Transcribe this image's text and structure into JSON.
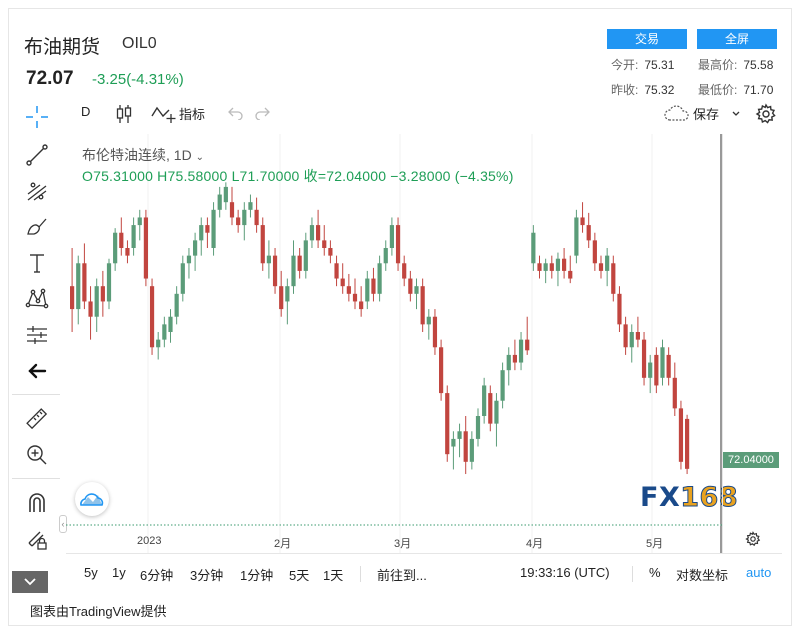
{
  "header": {
    "title": "布油期货",
    "symbol": "OIL0",
    "price": "72.07",
    "change": "-3.25(-4.31%)",
    "trade_label": "交易",
    "fullscreen_label": "全屏",
    "stats": {
      "open_label": "今开:",
      "open": "75.31",
      "high_label": "最高价:",
      "high": "75.58",
      "prev_label": "昨收:",
      "prev": "75.32",
      "low_label": "最低价:",
      "low": "71.70"
    }
  },
  "toolbar": {
    "interval": "D",
    "indicators_label": "指标",
    "save_label": "保存"
  },
  "legend": {
    "name": "布伦特油连续, 1D",
    "ohlc": "O75.31000  H75.58000  L71.70000  收=72.04000  −3.28000 (−4.35%)"
  },
  "price_tag": "72.04000",
  "logo_text": {
    "fx": "FX",
    "num": "168"
  },
  "colors": {
    "up": "#5b9c79",
    "down": "#c1453f",
    "accent": "#2196f3"
  },
  "icons": [
    "crosshair-icon",
    "trend-line-icon",
    "fib-icon",
    "brush-icon",
    "text-icon",
    "pattern-icon",
    "forecast-icon",
    "back-arrow-icon",
    "ruler-icon",
    "zoom-in-icon",
    "magnet-icon",
    "lock-pencil-icon",
    "eye-icon"
  ],
  "bottom": {
    "ranges": [
      "5y",
      "1y",
      "6分钟",
      "3分钟",
      "1分钟",
      "5天",
      "1天"
    ],
    "goto_label": "前往到...",
    "clock": "19:33:16 (UTC)",
    "percent": "%",
    "log_label": "对数坐标",
    "auto_label": "auto"
  },
  "footer": "图表由TradingView提供",
  "chart_data": {
    "type": "candlestick",
    "x_labels": [
      "2023",
      "2月",
      "3月",
      "4月",
      "5月"
    ],
    "last_price": 72.04,
    "candles": [
      [
        84.0,
        86.5,
        81.0,
        82.5
      ],
      [
        82.5,
        86.0,
        81.5,
        85.5
      ],
      [
        85.5,
        86.8,
        82.5,
        83.0
      ],
      [
        83.0,
        84.0,
        80.5,
        82.0
      ],
      [
        82.0,
        84.5,
        81.0,
        84.0
      ],
      [
        84.0,
        85.0,
        82.0,
        83.0
      ],
      [
        83.0,
        85.8,
        82.5,
        85.5
      ],
      [
        85.5,
        87.8,
        85.0,
        87.5
      ],
      [
        87.5,
        88.5,
        86.0,
        86.5
      ],
      [
        86.5,
        87.0,
        85.5,
        86.0
      ],
      [
        86.5,
        88.5,
        86.0,
        88.0
      ],
      [
        88.0,
        89.0,
        87.0,
        88.5
      ],
      [
        88.5,
        89.0,
        84.0,
        84.5
      ],
      [
        84.0,
        84.5,
        79.5,
        80.0
      ],
      [
        80.0,
        81.0,
        79.2,
        80.5
      ],
      [
        80.5,
        82.0,
        80.0,
        81.5
      ],
      [
        81.0,
        82.5,
        80.3,
        82.0
      ],
      [
        82.0,
        84.0,
        81.5,
        83.5
      ],
      [
        83.5,
        86.0,
        83.0,
        85.5
      ],
      [
        85.5,
        86.5,
        84.5,
        86.0
      ],
      [
        86.0,
        87.5,
        85.0,
        87.0
      ],
      [
        87.0,
        88.5,
        86.0,
        88.0
      ],
      [
        88.0,
        88.5,
        86.5,
        87.5
      ],
      [
        86.5,
        89.5,
        86.0,
        89.0
      ],
      [
        89.0,
        90.5,
        88.5,
        90.0
      ],
      [
        89.5,
        90.8,
        89.0,
        90.5
      ],
      [
        89.5,
        90.5,
        88.0,
        88.5
      ],
      [
        88.5,
        89.0,
        87.5,
        88.0
      ],
      [
        88.0,
        89.5,
        87.0,
        89.0
      ],
      [
        89.0,
        90.0,
        88.5,
        89.5
      ],
      [
        89.0,
        89.8,
        87.5,
        88.0
      ],
      [
        88.0,
        88.5,
        85.0,
        85.5
      ],
      [
        85.5,
        87.0,
        84.5,
        86.0
      ],
      [
        86.0,
        86.5,
        83.5,
        84.0
      ],
      [
        84.0,
        85.0,
        82.0,
        82.5
      ],
      [
        83.0,
        84.5,
        81.5,
        84.0
      ],
      [
        84.0,
        87.0,
        83.5,
        86.0
      ],
      [
        86.0,
        86.5,
        84.5,
        85.0
      ],
      [
        85.0,
        87.5,
        84.5,
        87.0
      ],
      [
        87.0,
        88.5,
        86.5,
        88.0
      ],
      [
        88.0,
        89.0,
        86.5,
        87.0
      ],
      [
        87.0,
        88.0,
        86.0,
        86.5
      ],
      [
        86.5,
        87.0,
        85.5,
        86.0
      ],
      [
        85.5,
        86.0,
        84.0,
        84.5
      ],
      [
        84.5,
        85.5,
        83.5,
        84.0
      ],
      [
        84.0,
        84.8,
        83.0,
        83.5
      ],
      [
        83.5,
        84.5,
        82.5,
        83.0
      ],
      [
        83.0,
        84.0,
        82.0,
        82.5
      ],
      [
        83.0,
        85.0,
        82.5,
        84.5
      ],
      [
        84.5,
        85.2,
        83.0,
        83.5
      ],
      [
        83.5,
        86.0,
        83.0,
        85.5
      ],
      [
        85.5,
        87.0,
        85.0,
        86.5
      ],
      [
        86.5,
        88.5,
        86.0,
        88.0
      ],
      [
        88.0,
        88.5,
        85.0,
        85.5
      ],
      [
        85.5,
        86.0,
        84.0,
        84.5
      ],
      [
        84.5,
        85.0,
        83.0,
        83.5
      ],
      [
        83.5,
        84.5,
        82.5,
        84.0
      ],
      [
        84.0,
        84.5,
        81.0,
        81.5
      ],
      [
        81.5,
        82.5,
        80.5,
        82.0
      ],
      [
        82.0,
        82.5,
        79.5,
        80.0
      ],
      [
        80.0,
        80.5,
        76.5,
        77.0
      ],
      [
        77.0,
        77.5,
        72.5,
        73.0
      ],
      [
        73.5,
        74.5,
        72.0,
        74.0
      ],
      [
        74.0,
        75.0,
        72.8,
        74.5
      ],
      [
        74.5,
        75.5,
        71.7,
        72.5
      ],
      [
        72.5,
        74.5,
        72.0,
        74.0
      ],
      [
        74.0,
        76.0,
        73.5,
        75.5
      ],
      [
        75.5,
        78.0,
        75.0,
        77.5
      ],
      [
        77.0,
        77.5,
        74.5,
        75.0
      ],
      [
        75.0,
        77.0,
        73.5,
        76.5
      ],
      [
        76.5,
        79.0,
        76.0,
        78.5
      ],
      [
        78.5,
        80.0,
        77.5,
        79.5
      ],
      [
        79.5,
        80.5,
        78.5,
        79.0
      ],
      [
        79.0,
        81.0,
        78.5,
        80.5
      ],
      [
        80.5,
        82.0,
        79.5,
        79.8
      ],
      [
        85.5,
        88.0,
        85.0,
        87.5
      ],
      [
        85.5,
        86.0,
        84.5,
        85.0
      ],
      [
        85.0,
        85.8,
        84.2,
        85.5
      ],
      [
        85.5,
        86.0,
        84.5,
        85.0
      ],
      [
        85.0,
        86.2,
        84.0,
        85.8
      ],
      [
        85.8,
        86.5,
        84.5,
        85.0
      ],
      [
        85.0,
        86.0,
        84.2,
        84.5
      ],
      [
        86.0,
        89.0,
        85.5,
        88.5
      ],
      [
        88.5,
        89.5,
        87.5,
        88.0
      ],
      [
        88.0,
        88.8,
        86.5,
        87.0
      ],
      [
        87.0,
        87.5,
        85.0,
        85.5
      ],
      [
        85.5,
        86.0,
        84.5,
        85.0
      ],
      [
        85.0,
        86.5,
        84.0,
        86.0
      ],
      [
        85.5,
        86.0,
        83.0,
        83.5
      ],
      [
        83.5,
        84.0,
        81.0,
        81.5
      ],
      [
        81.5,
        82.0,
        79.5,
        80.0
      ],
      [
        80.0,
        81.5,
        79.0,
        81.0
      ],
      [
        81.0,
        82.0,
        80.0,
        80.5
      ],
      [
        80.5,
        81.0,
        77.5,
        78.0
      ],
      [
        78.0,
        79.5,
        77.0,
        79.0
      ],
      [
        79.5,
        80.0,
        77.0,
        77.5
      ],
      [
        78.0,
        80.5,
        77.5,
        80.0
      ],
      [
        79.5,
        80.0,
        77.5,
        78.0
      ],
      [
        78.0,
        79.0,
        75.5,
        76.0
      ],
      [
        76.0,
        76.5,
        72.0,
        72.5
      ],
      [
        75.31,
        75.58,
        71.7,
        72.04
      ]
    ]
  }
}
